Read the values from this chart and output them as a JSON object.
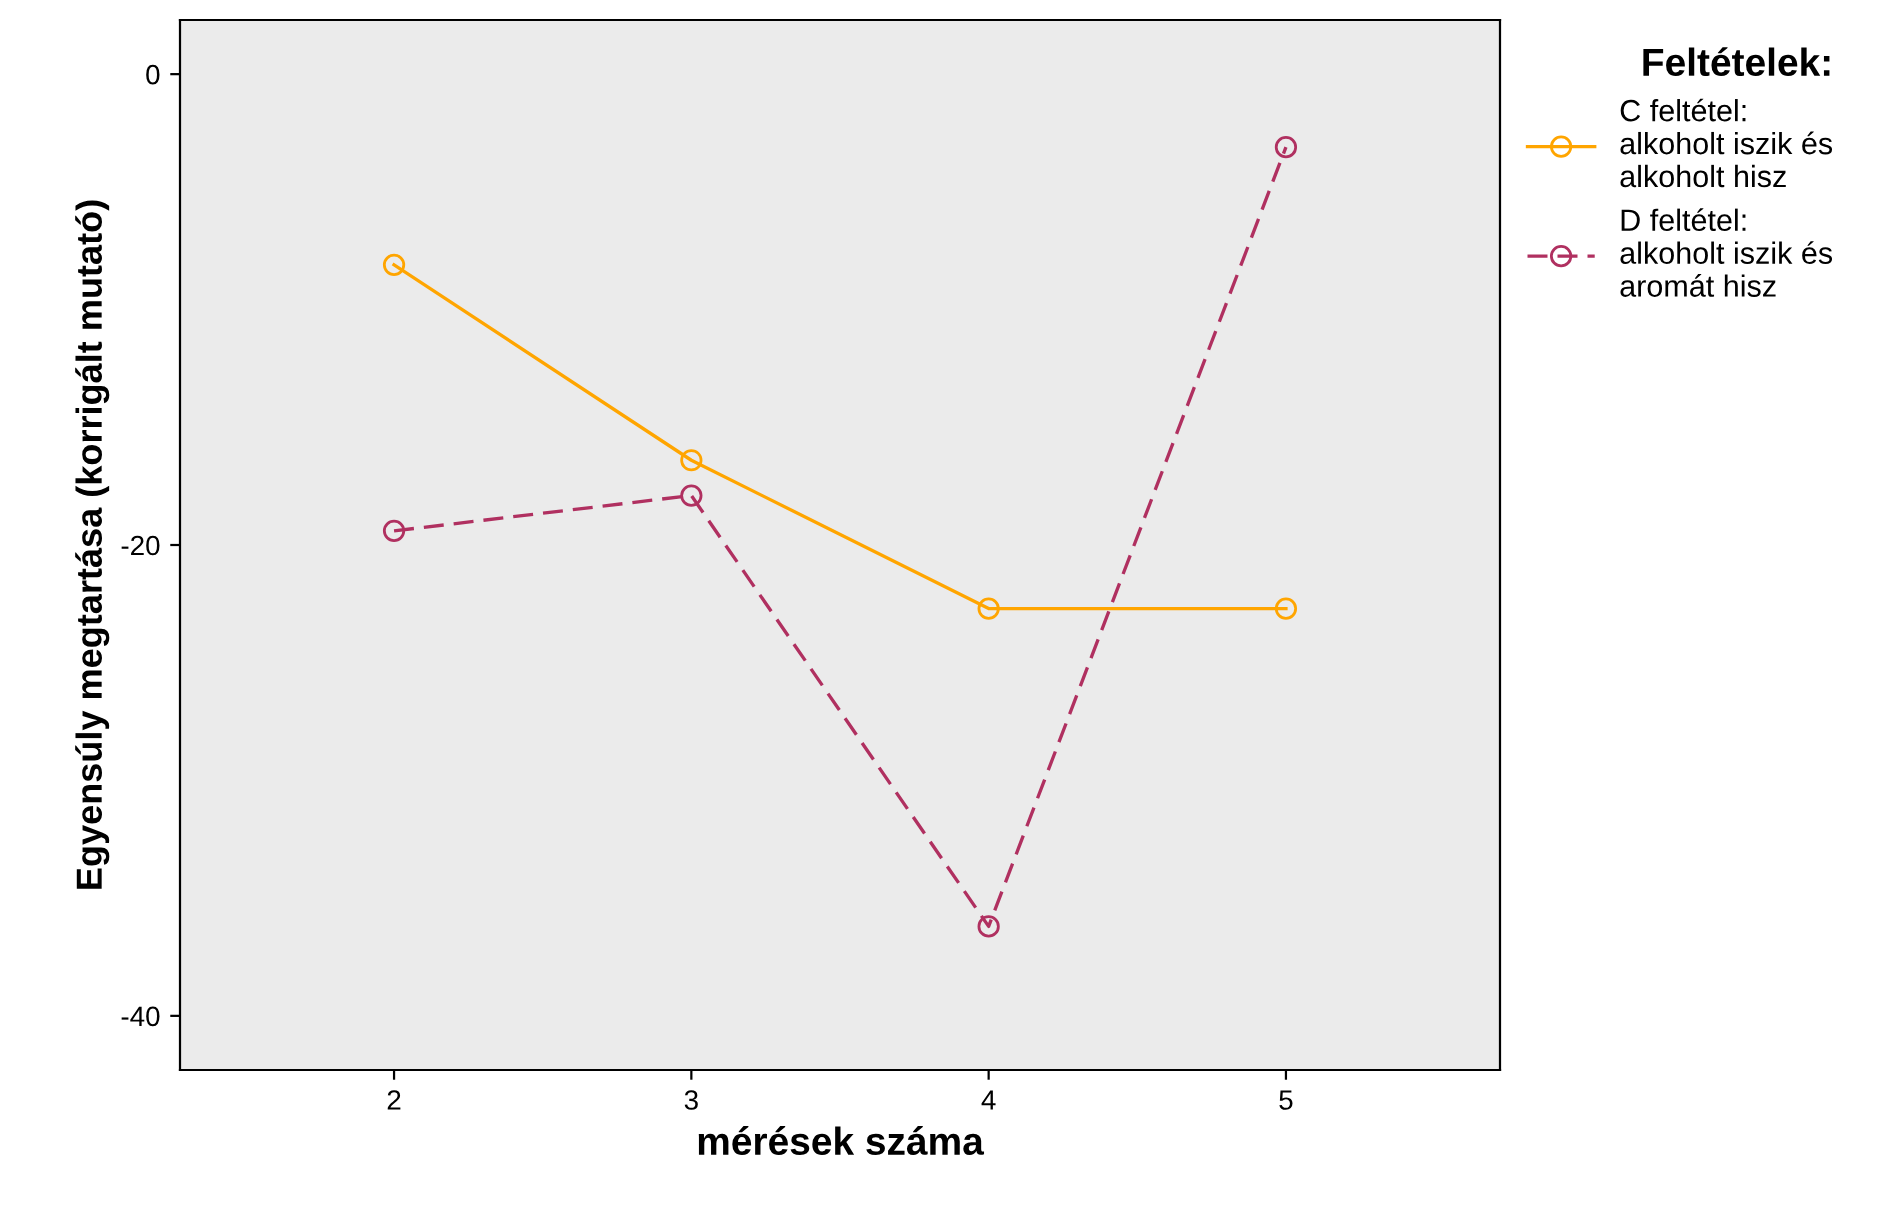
{
  "chart_data": {
    "type": "line",
    "xlabel": "mérések száma",
    "ylabel": "Egyensúly megtartása (korrigált mutató)",
    "legend_title": "Feltételek:",
    "legend": "right",
    "marker": "circle",
    "grid": false,
    "x": [
      2,
      3,
      4,
      5
    ],
    "xlim": [
      1.28,
      5.72
    ],
    "xticks": [
      2,
      3,
      4,
      5
    ],
    "ylim": [
      -42.3,
      2.3
    ],
    "yticks": [
      -40,
      -20,
      0
    ],
    "series": [
      {
        "name": "C feltétel:\nalkoholt iszik és\nalkoholt hisz",
        "color": "#ffa500",
        "line_style": "solid",
        "values": [
          -8.1,
          -16.4,
          -22.7,
          -22.7
        ]
      },
      {
        "name": "D feltétel:\nalkoholt iszik és\naromát hisz",
        "color": "#b03060",
        "line_style": "dashed",
        "values": [
          -19.4,
          -17.9,
          -36.2,
          -3.1
        ]
      }
    ]
  }
}
